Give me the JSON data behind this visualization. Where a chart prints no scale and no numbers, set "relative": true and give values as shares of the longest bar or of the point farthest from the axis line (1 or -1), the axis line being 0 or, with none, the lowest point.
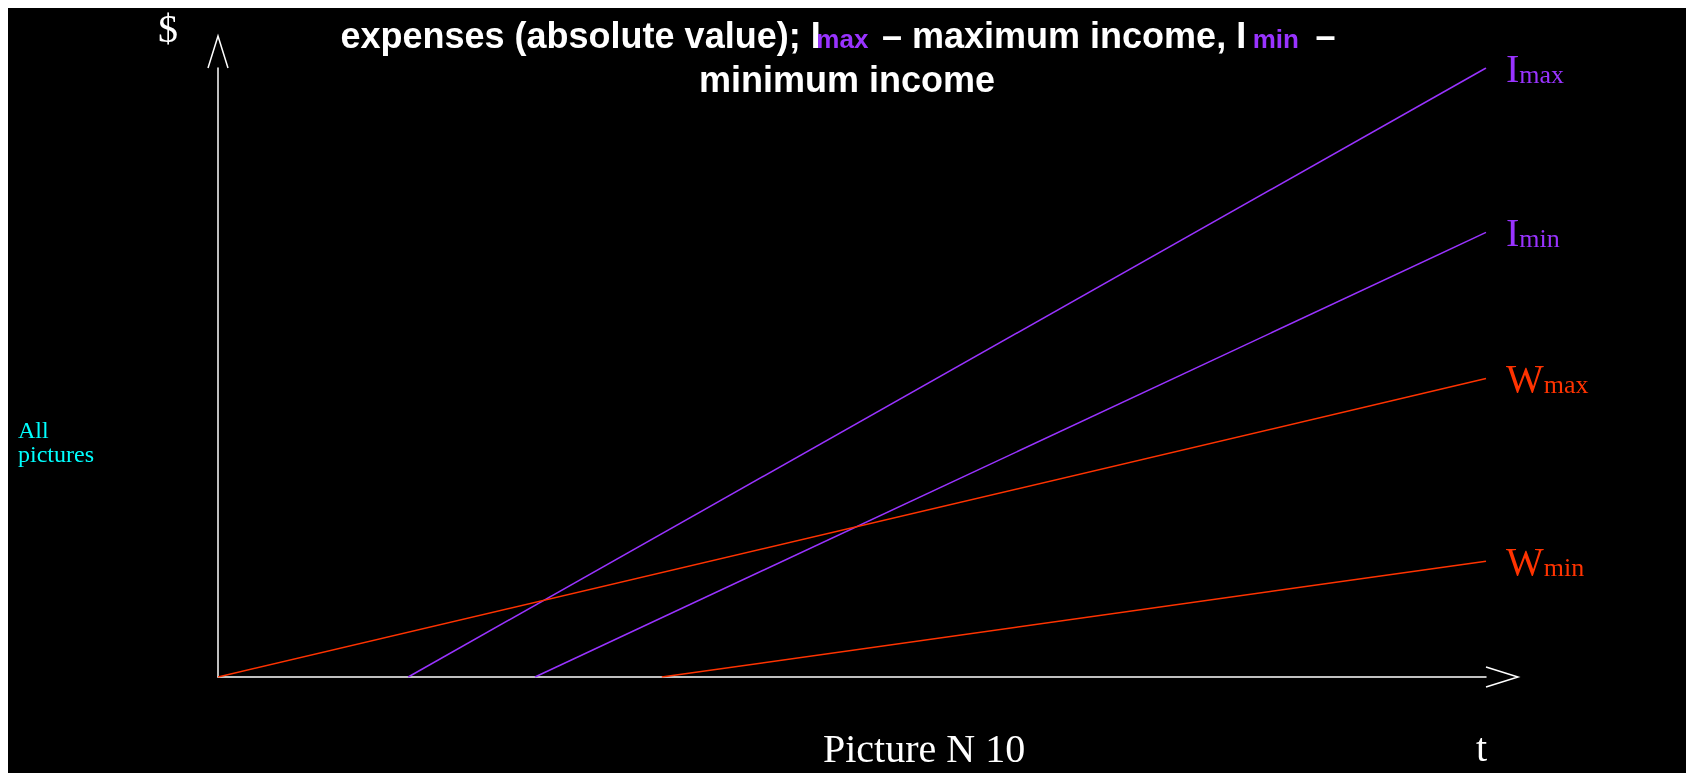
{
  "chart_data": {
    "type": "line",
    "relative": true,
    "title": "expenses (absolute value); I$_{max}$ – maximum income, I$_{min}$ – minimum income",
    "xlabel": "t",
    "ylabel": "$",
    "annotations": [
      "All pictures",
      "Picture N 10"
    ],
    "categories": [
      null,
      null,
      null,
      null,
      null,
      null,
      null,
      null,
      null,
      null,
      null,
      null,
      null,
      null,
      null,
      null,
      null,
      null,
      null,
      null,
      null
    ],
    "series": [
      {
        "name": "I$_{max}$",
        "color": "#9933ff",
        "values": [
          null,
          null,
          null,
          0,
          null,
          null,
          null,
          null,
          null,
          null,
          null,
          null,
          null,
          null,
          null,
          null,
          null,
          null,
          null,
          null,
          1
        ]
      },
      {
        "name": "I$_{min}$",
        "color": "#9933ff",
        "values": [
          null,
          null,
          null,
          null,
          null,
          0,
          null,
          null,
          null,
          null,
          null,
          null,
          null,
          null,
          null,
          null,
          null,
          null,
          null,
          null,
          0.73
        ]
      },
      {
        "name": "W$_{max}$",
        "color": "#ff3300",
        "values": [
          0,
          null,
          null,
          null,
          null,
          null,
          null,
          null,
          null,
          null,
          null,
          null,
          null,
          null,
          null,
          null,
          null,
          null,
          null,
          null,
          0.49
        ]
      },
      {
        "name": "W$_{min}$",
        "color": "#ff3300",
        "values": [
          null,
          null,
          null,
          null,
          null,
          null,
          null,
          0,
          null,
          null,
          null,
          null,
          null,
          null,
          null,
          null,
          null,
          null,
          null,
          null,
          0.19
        ]
      }
    ],
    "grid": false,
    "marker": "none",
    "line_style": "solid"
  }
}
